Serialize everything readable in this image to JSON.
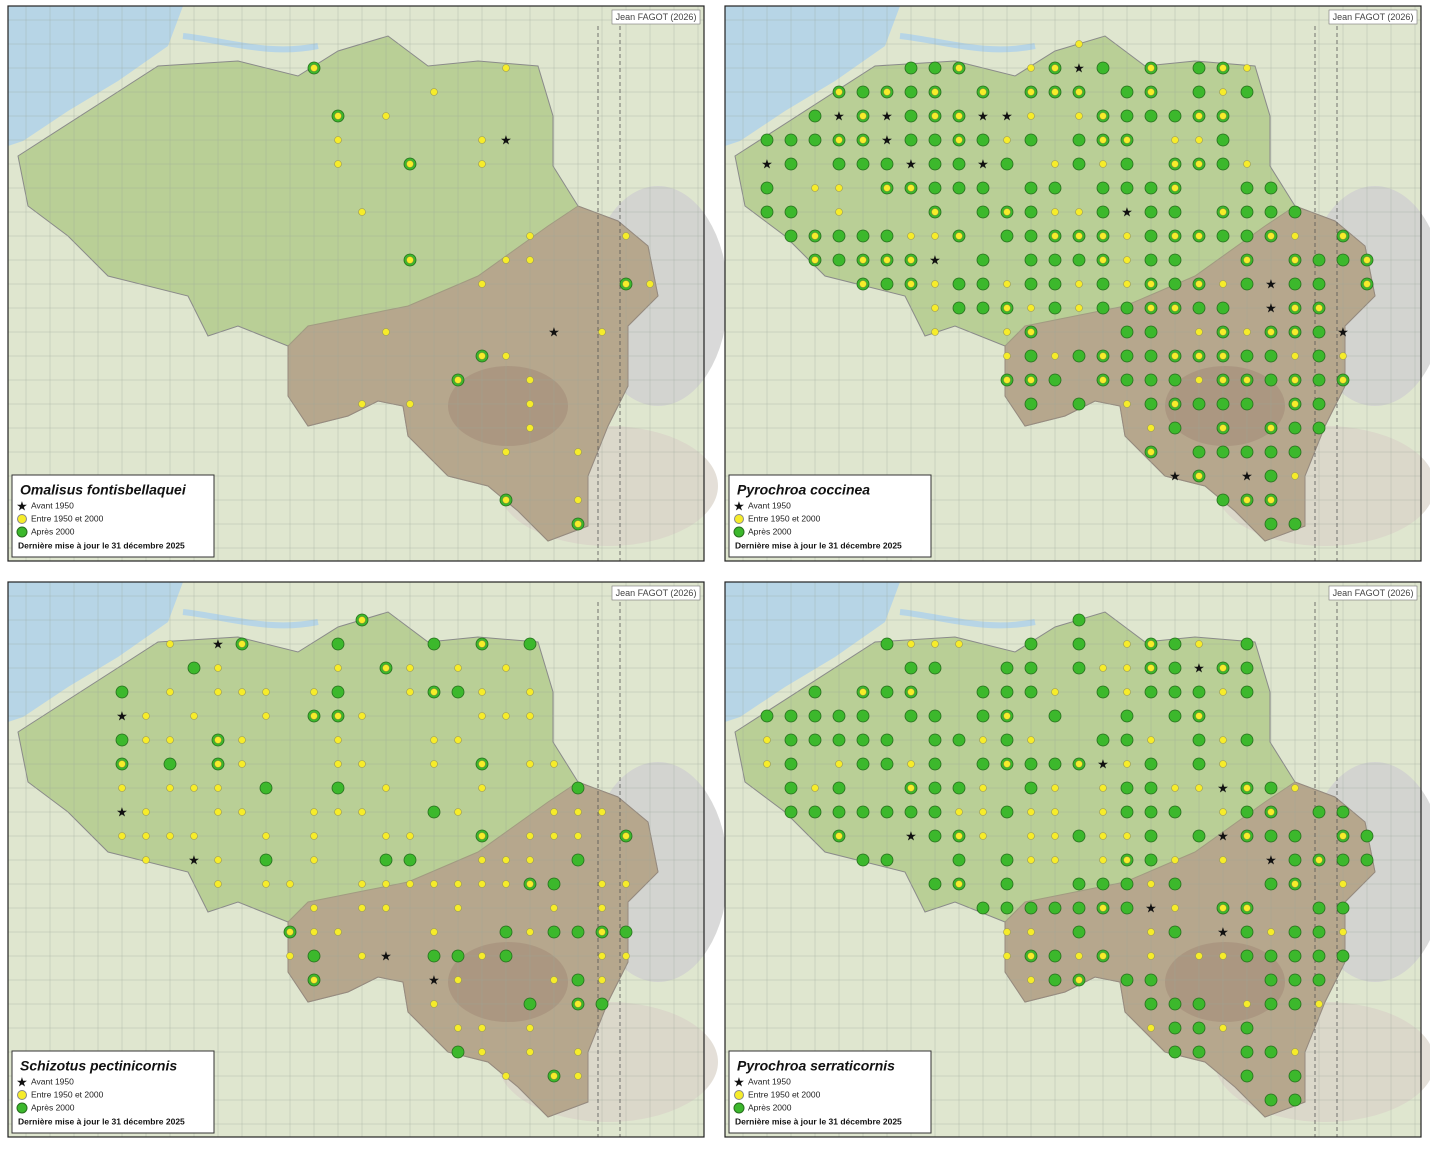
{
  "maps": [
    {
      "species": "Omalisus fontisbellaquei",
      "credit": "Jean FAGOT (2026)",
      "legend": [
        "Avant 1950",
        "Entre 1950 et 2000",
        "Après 2000"
      ],
      "updated": "Dernière mise à jour le 31 décembre 2025"
    },
    {
      "species": "Pyrochroa coccinea",
      "credit": "Jean FAGOT (2026)",
      "legend": [
        "Avant 1950",
        "Entre 1950 et 2000",
        "Après 2000"
      ],
      "updated": "Dernière mise à jour le 31 décembre 2025"
    },
    {
      "species": "Schizotus pectinicornis",
      "credit": "Jean FAGOT (2026)",
      "legend": [
        "Avant 1950",
        "Entre 1950 et 2000",
        "Après 2000"
      ],
      "updated": "Dernière mise à jour le 31 décembre 2025"
    },
    {
      "species": "Pyrochroa serraticornis",
      "credit": "Jean FAGOT (2026)",
      "legend": [
        "Avant 1950",
        "Entre 1950 et 2000",
        "Après 2000"
      ],
      "updated": "Dernière mise à jour le 31 décembre 2025"
    }
  ]
}
